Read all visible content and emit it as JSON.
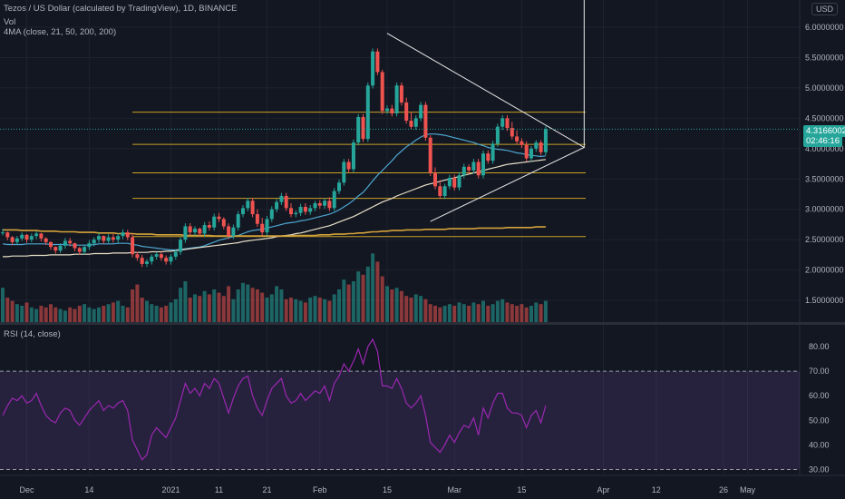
{
  "header": {
    "title": "Tezos / US Dollar (calculated by TradingView), 1D, BINANCE",
    "vol_label": "Vol",
    "ma_label": "4MA (close, 21, 50, 200, 200)",
    "rsi_label": "RSI (14, close)",
    "currency": "USD"
  },
  "price_badge": {
    "price": "4.3166002",
    "countdown": "02:46:16"
  },
  "colors": {
    "bg": "#131722",
    "up": "#26a69a",
    "down": "#ef5350",
    "hline": "#c9a227",
    "ma21": "#4da7d0",
    "ma50": "#e8e0c8",
    "ma200": "#d4a33a",
    "rsi": "#9c27b0",
    "rsi_band": "#7e57c2"
  },
  "chart_data": [
    {
      "type": "candlestick",
      "title": "Tezos / US Dollar (calculated by TradingView), 1D, BINANCE",
      "ylim": [
        1.15,
        6.3
      ],
      "y_ticks": [
        "6.0000000",
        "5.5000000",
        "5.0000000",
        "4.5000000",
        "4.0000000",
        "3.5000000",
        "3.0000000",
        "2.5000000",
        "2.0000000",
        "1.5000000"
      ],
      "x_ticks": [
        {
          "label": "Dec",
          "idx": 5
        },
        {
          "label": "14",
          "idx": 18
        },
        {
          "label": "2021",
          "idx": 35
        },
        {
          "label": "11",
          "idx": 45
        },
        {
          "label": "21",
          "idx": 55
        },
        {
          "label": "Feb",
          "idx": 66
        },
        {
          "label": "15",
          "idx": 80
        },
        {
          "label": "Mar",
          "idx": 94
        },
        {
          "label": "15",
          "idx": 108
        },
        {
          "label": "Apr",
          "idx": 125
        },
        {
          "label": "12",
          "idx": 136
        },
        {
          "label": "26",
          "idx": 150
        },
        {
          "label": "May",
          "idx": 155
        }
      ],
      "close": [
        2.62,
        2.54,
        2.46,
        2.52,
        2.58,
        2.5,
        2.56,
        2.6,
        2.52,
        2.46,
        2.38,
        2.32,
        2.4,
        2.48,
        2.44,
        2.36,
        2.3,
        2.38,
        2.44,
        2.5,
        2.56,
        2.48,
        2.54,
        2.5,
        2.56,
        2.62,
        2.54,
        2.26,
        2.2,
        2.1,
        2.14,
        2.22,
        2.26,
        2.2,
        2.14,
        2.22,
        2.3,
        2.5,
        2.72,
        2.62,
        2.68,
        2.6,
        2.74,
        2.7,
        2.88,
        2.84,
        2.72,
        2.56,
        2.7,
        2.92,
        3.02,
        3.14,
        2.92,
        2.76,
        2.62,
        2.84,
        3.0,
        3.12,
        3.22,
        3.02,
        2.92,
        2.94,
        3.04,
        2.96,
        3.02,
        3.1,
        3.06,
        3.14,
        3.02,
        3.3,
        3.44,
        3.78,
        3.66,
        4.1,
        4.52,
        4.16,
        5.04,
        5.6,
        5.26,
        4.62,
        4.66,
        4.58,
        5.04,
        4.76,
        4.46,
        4.36,
        4.5,
        4.72,
        4.18,
        3.6,
        3.38,
        3.22,
        3.38,
        3.52,
        3.36,
        3.56,
        3.7,
        3.64,
        3.78,
        3.56,
        3.92,
        3.8,
        4.08,
        4.36,
        4.5,
        4.34,
        4.2,
        4.12,
        4.06,
        3.84,
        4.0,
        4.1,
        3.94,
        4.32
      ],
      "high": [
        2.68,
        2.63,
        2.56,
        2.56,
        2.62,
        2.59,
        2.6,
        2.64,
        2.61,
        2.54,
        2.47,
        2.39,
        2.44,
        2.53,
        2.53,
        2.45,
        2.38,
        2.42,
        2.49,
        2.54,
        2.61,
        2.57,
        2.59,
        2.59,
        2.6,
        2.67,
        2.66,
        2.6,
        2.3,
        2.25,
        2.18,
        2.26,
        2.3,
        2.3,
        2.24,
        2.26,
        2.34,
        2.54,
        2.77,
        2.77,
        2.72,
        2.7,
        2.79,
        2.8,
        2.93,
        2.94,
        2.87,
        2.77,
        2.75,
        2.97,
        3.07,
        3.19,
        3.19,
        3.0,
        2.86,
        2.89,
        3.05,
        3.17,
        3.27,
        3.27,
        3.1,
        2.98,
        3.09,
        3.1,
        3.07,
        3.14,
        3.15,
        3.18,
        3.2,
        3.35,
        3.49,
        3.83,
        3.83,
        4.15,
        4.57,
        4.57,
        5.09,
        5.65,
        5.65,
        5.3,
        4.71,
        4.72,
        5.09,
        5.09,
        4.84,
        4.6,
        4.55,
        4.77,
        4.77,
        4.22,
        3.69,
        3.48,
        3.42,
        3.57,
        3.57,
        3.61,
        3.75,
        3.74,
        3.83,
        3.83,
        3.97,
        3.97,
        4.13,
        4.41,
        4.55,
        4.55,
        4.44,
        4.3,
        4.17,
        4.12,
        4.04,
        4.14,
        4.14,
        4.37
      ],
      "low": [
        2.57,
        2.49,
        2.41,
        2.42,
        2.48,
        2.45,
        2.46,
        2.51,
        2.47,
        2.41,
        2.33,
        2.27,
        2.28,
        2.35,
        2.39,
        2.31,
        2.25,
        2.25,
        2.33,
        2.39,
        2.45,
        2.43,
        2.44,
        2.45,
        2.45,
        2.51,
        2.49,
        2.21,
        2.15,
        2.05,
        2.05,
        2.09,
        2.17,
        2.15,
        2.09,
        2.09,
        2.17,
        2.25,
        2.45,
        2.57,
        2.57,
        2.55,
        2.55,
        2.65,
        2.65,
        2.79,
        2.67,
        2.51,
        2.51,
        2.65,
        2.87,
        2.97,
        2.87,
        2.71,
        2.57,
        2.57,
        2.79,
        2.95,
        3.07,
        2.97,
        2.87,
        2.87,
        2.89,
        2.91,
        2.91,
        2.97,
        3.01,
        3.01,
        2.97,
        2.97,
        3.25,
        3.39,
        3.61,
        3.61,
        4.05,
        4.11,
        4.11,
        4.99,
        5.21,
        4.57,
        4.57,
        4.53,
        4.53,
        4.71,
        4.41,
        4.31,
        4.31,
        4.45,
        4.13,
        3.55,
        3.33,
        3.17,
        3.17,
        3.33,
        3.31,
        3.31,
        3.51,
        3.59,
        3.59,
        3.51,
        3.51,
        3.75,
        3.75,
        4.03,
        4.31,
        4.29,
        4.15,
        4.07,
        4.01,
        3.79,
        3.79,
        3.95,
        3.89,
        3.89
      ],
      "volume": [
        0.42,
        0.3,
        0.26,
        0.22,
        0.2,
        0.24,
        0.18,
        0.16,
        0.2,
        0.18,
        0.22,
        0.18,
        0.16,
        0.14,
        0.18,
        0.16,
        0.2,
        0.22,
        0.18,
        0.16,
        0.18,
        0.2,
        0.22,
        0.24,
        0.26,
        0.2,
        0.18,
        0.4,
        0.46,
        0.3,
        0.26,
        0.22,
        0.2,
        0.18,
        0.2,
        0.24,
        0.28,
        0.42,
        0.5,
        0.3,
        0.34,
        0.32,
        0.38,
        0.34,
        0.4,
        0.36,
        0.32,
        0.44,
        0.28,
        0.4,
        0.48,
        0.46,
        0.42,
        0.4,
        0.36,
        0.3,
        0.34,
        0.44,
        0.4,
        0.28,
        0.3,
        0.28,
        0.26,
        0.24,
        0.3,
        0.32,
        0.3,
        0.28,
        0.26,
        0.34,
        0.4,
        0.52,
        0.46,
        0.5,
        0.62,
        0.58,
        0.68,
        0.84,
        0.74,
        0.56,
        0.44,
        0.4,
        0.42,
        0.38,
        0.32,
        0.3,
        0.34,
        0.32,
        0.28,
        0.22,
        0.2,
        0.18,
        0.2,
        0.22,
        0.2,
        0.24,
        0.22,
        0.2,
        0.24,
        0.22,
        0.26,
        0.2,
        0.22,
        0.26,
        0.28,
        0.24,
        0.22,
        0.2,
        0.22,
        0.18,
        0.2,
        0.24,
        0.22,
        0.26
      ],
      "series": [
        {
          "name": "MA 21",
          "values": [
            2.43,
            2.42,
            2.42,
            2.42,
            2.42,
            2.43,
            2.43,
            2.43,
            2.43,
            2.43,
            2.42,
            2.42,
            2.42,
            2.42,
            2.41,
            2.41,
            2.41,
            2.41,
            2.41,
            2.42,
            2.43,
            2.43,
            2.43,
            2.43,
            2.44,
            2.44,
            2.44,
            2.42,
            2.41,
            2.39,
            2.38,
            2.37,
            2.36,
            2.35,
            2.34,
            2.33,
            2.33,
            2.34,
            2.35,
            2.36,
            2.37,
            2.38,
            2.4,
            2.43,
            2.46,
            2.49,
            2.51,
            2.53,
            2.55,
            2.57,
            2.6,
            2.63,
            2.65,
            2.66,
            2.67,
            2.69,
            2.71,
            2.73,
            2.75,
            2.77,
            2.78,
            2.79,
            2.81,
            2.82,
            2.84,
            2.86,
            2.88,
            2.9,
            2.92,
            2.95,
            2.99,
            3.04,
            3.09,
            3.15,
            3.22,
            3.28,
            3.37,
            3.47,
            3.56,
            3.64,
            3.72,
            3.8,
            3.89,
            3.96,
            4.03,
            4.08,
            4.14,
            4.19,
            4.23,
            4.24,
            4.24,
            4.23,
            4.22,
            4.2,
            4.18,
            4.16,
            4.14,
            4.12,
            4.1,
            4.07,
            4.05,
            4.02,
            4.0,
            3.99,
            3.98,
            3.97,
            3.95,
            3.93,
            3.92,
            3.9,
            3.89,
            3.88,
            3.87,
            3.88
          ]
        },
        {
          "name": "MA 50",
          "values": [
            2.22,
            2.22,
            2.23,
            2.23,
            2.23,
            2.23,
            2.24,
            2.24,
            2.24,
            2.24,
            2.25,
            2.25,
            2.25,
            2.25,
            2.25,
            2.26,
            2.26,
            2.26,
            2.26,
            2.27,
            2.27,
            2.27,
            2.27,
            2.28,
            2.28,
            2.28,
            2.28,
            2.29,
            2.29,
            2.29,
            2.29,
            2.3,
            2.3,
            2.3,
            2.31,
            2.31,
            2.32,
            2.33,
            2.34,
            2.35,
            2.36,
            2.37,
            2.38,
            2.39,
            2.4,
            2.41,
            2.42,
            2.43,
            2.44,
            2.45,
            2.47,
            2.48,
            2.49,
            2.5,
            2.51,
            2.52,
            2.53,
            2.55,
            2.56,
            2.57,
            2.58,
            2.6,
            2.61,
            2.63,
            2.65,
            2.67,
            2.69,
            2.71,
            2.73,
            2.76,
            2.79,
            2.82,
            2.85,
            2.88,
            2.92,
            2.96,
            3.0,
            3.04,
            3.08,
            3.12,
            3.15,
            3.18,
            3.22,
            3.25,
            3.28,
            3.31,
            3.34,
            3.37,
            3.4,
            3.42,
            3.44,
            3.46,
            3.48,
            3.5,
            3.52,
            3.54,
            3.56,
            3.58,
            3.6,
            3.62,
            3.64,
            3.66,
            3.68,
            3.7,
            3.72,
            3.74,
            3.75,
            3.76,
            3.77,
            3.78,
            3.79,
            3.8,
            3.81,
            3.82
          ]
        },
        {
          "name": "MA 200",
          "values": [
            2.66,
            2.66,
            2.66,
            2.66,
            2.65,
            2.65,
            2.65,
            2.65,
            2.64,
            2.64,
            2.64,
            2.64,
            2.63,
            2.63,
            2.63,
            2.63,
            2.62,
            2.62,
            2.62,
            2.62,
            2.61,
            2.61,
            2.61,
            2.61,
            2.6,
            2.6,
            2.6,
            2.6,
            2.59,
            2.59,
            2.59,
            2.59,
            2.58,
            2.58,
            2.58,
            2.58,
            2.58,
            2.58,
            2.57,
            2.57,
            2.57,
            2.57,
            2.57,
            2.57,
            2.56,
            2.56,
            2.56,
            2.56,
            2.56,
            2.56,
            2.56,
            2.56,
            2.56,
            2.56,
            2.56,
            2.56,
            2.56,
            2.56,
            2.56,
            2.56,
            2.56,
            2.57,
            2.57,
            2.57,
            2.57,
            2.57,
            2.58,
            2.58,
            2.58,
            2.59,
            2.59,
            2.59,
            2.6,
            2.6,
            2.61,
            2.61,
            2.62,
            2.63,
            2.63,
            2.64,
            2.64,
            2.65,
            2.65,
            2.65,
            2.66,
            2.66,
            2.66,
            2.66,
            2.67,
            2.67,
            2.67,
            2.67,
            2.67,
            2.68,
            2.68,
            2.68,
            2.68,
            2.68,
            2.68,
            2.69,
            2.69,
            2.69,
            2.69,
            2.69,
            2.69,
            2.7,
            2.7,
            2.7,
            2.7,
            2.7,
            2.7,
            2.71,
            2.71,
            2.71
          ]
        }
      ],
      "horizontal_levels": [
        4.6,
        4.07,
        3.6,
        3.18,
        2.55
      ],
      "triangle": {
        "apex": [
          121,
          4.02
        ],
        "top": [
          80,
          5.9
        ],
        "bottom": [
          89,
          2.8
        ]
      },
      "vertical_line_idx": 121
    },
    {
      "type": "line",
      "title": "RSI (14, close)",
      "ylim": [
        27,
        85
      ],
      "y_ticks": [
        "80.00",
        "70.00",
        "60.00",
        "50.00",
        "40.00",
        "30.00"
      ],
      "bands": [
        70,
        30
      ],
      "values": [
        52,
        56,
        59,
        58,
        60,
        57,
        58,
        61,
        56,
        52,
        50,
        49,
        53,
        55,
        54,
        50,
        48,
        51,
        54,
        56,
        58,
        54,
        56,
        55,
        57,
        58,
        54,
        42,
        38,
        34,
        36,
        44,
        47,
        45,
        43,
        47,
        51,
        58,
        65,
        61,
        63,
        60,
        65,
        63,
        67,
        65,
        59,
        53,
        59,
        64,
        67,
        68,
        60,
        55,
        52,
        58,
        63,
        65,
        67,
        60,
        57,
        58,
        61,
        58,
        60,
        62,
        61,
        64,
        58,
        65,
        68,
        73,
        70,
        74,
        79,
        73,
        80,
        83,
        78,
        64,
        64,
        63,
        67,
        63,
        57,
        55,
        57,
        60,
        52,
        41,
        39,
        37,
        40,
        44,
        41,
        45,
        48,
        47,
        51,
        44,
        55,
        51,
        57,
        61,
        61,
        55,
        53,
        53,
        52,
        47,
        52,
        54,
        49,
        56
      ]
    }
  ]
}
